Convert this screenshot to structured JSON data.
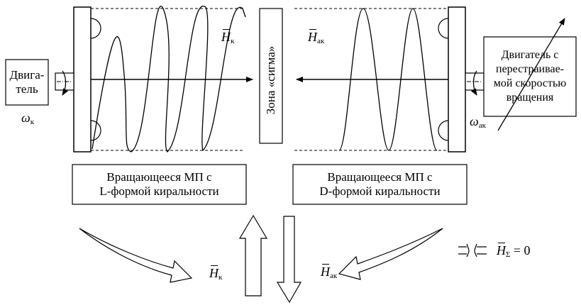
{
  "colors": {
    "ink": "#000000",
    "background": "#ffffff"
  },
  "motor_left": {
    "line1": "Двига-",
    "line2": "тель"
  },
  "omega_left": {
    "symbol": "ω",
    "sub": "к"
  },
  "field_left": {
    "symbol": "H",
    "sub": "к"
  },
  "zone_label": "Зона «сигма»",
  "field_right": {
    "symbol": "H",
    "sub": "ак"
  },
  "motor_right": {
    "lines": [
      "Двигатель с",
      "перестраивае-",
      "мой скоростью",
      "вращения"
    ]
  },
  "omega_right": {
    "symbol": "ω",
    "sub": "ак"
  },
  "box_left": {
    "line1": "Вращающееся МП с",
    "line2": "L-формой киральности"
  },
  "box_right": {
    "line1": "Вращающееся МП с",
    "line2": "D-формой киральности"
  },
  "result_left": {
    "symbol": "H",
    "sub": "к"
  },
  "result_right": {
    "symbol": "H",
    "sub": "ак"
  },
  "sum": {
    "symbol": "H",
    "sub": "Σ",
    "rhs": "= 0"
  }
}
